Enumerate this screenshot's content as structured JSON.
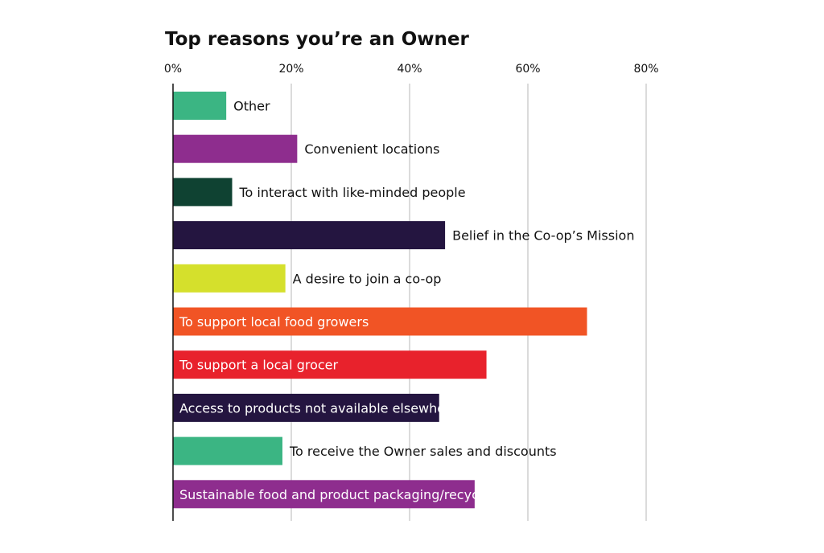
{
  "chart_data": {
    "type": "bar",
    "orientation": "horizontal",
    "title": "Top reasons you’re an Owner",
    "xlabel": "",
    "ylabel": "",
    "xlim": [
      0,
      80
    ],
    "x_ticks": [
      0,
      20,
      40,
      60,
      80
    ],
    "x_tick_labels": [
      "0%",
      "20%",
      "40%",
      "60%",
      "80%"
    ],
    "grid": true,
    "legend": "none",
    "bars": [
      {
        "label": "Other",
        "value": 9,
        "color": "#3bb583",
        "label_inside": false,
        "label_color": "#111111"
      },
      {
        "label": "Convenient locations",
        "value": 21,
        "color": "#8e2d8e",
        "label_inside": false,
        "label_color": "#111111"
      },
      {
        "label": "To interact with like-minded people",
        "value": 10,
        "color": "#0f4232",
        "label_inside": false,
        "label_color": "#111111"
      },
      {
        "label": "Belief in the Co-op’s Mission",
        "value": 46,
        "color": "#241540",
        "label_inside": false,
        "label_color": "#111111"
      },
      {
        "label": "A desire to join a co-op",
        "value": 19,
        "color": "#d5e02c",
        "label_inside": false,
        "label_color": "#111111"
      },
      {
        "label": "To support local food growers",
        "value": 70,
        "color": "#f15425",
        "label_inside": true,
        "label_color": "#ffffff"
      },
      {
        "label": "To support a local grocer",
        "value": 53,
        "color": "#e8222c",
        "label_inside": true,
        "label_color": "#ffffff"
      },
      {
        "label": "Access to products not available elsewhere",
        "value": 45,
        "color": "#241540",
        "label_inside": true,
        "label_color": "#ffffff"
      },
      {
        "label": "To receive the Owner sales and discounts",
        "value": 18.5,
        "color": "#3bb583",
        "label_inside": false,
        "label_color": "#111111"
      },
      {
        "label": "Sustainable food and product packaging/recycling",
        "value": 51,
        "color": "#8e2d8e",
        "label_inside": true,
        "label_color": "#ffffff"
      }
    ]
  }
}
